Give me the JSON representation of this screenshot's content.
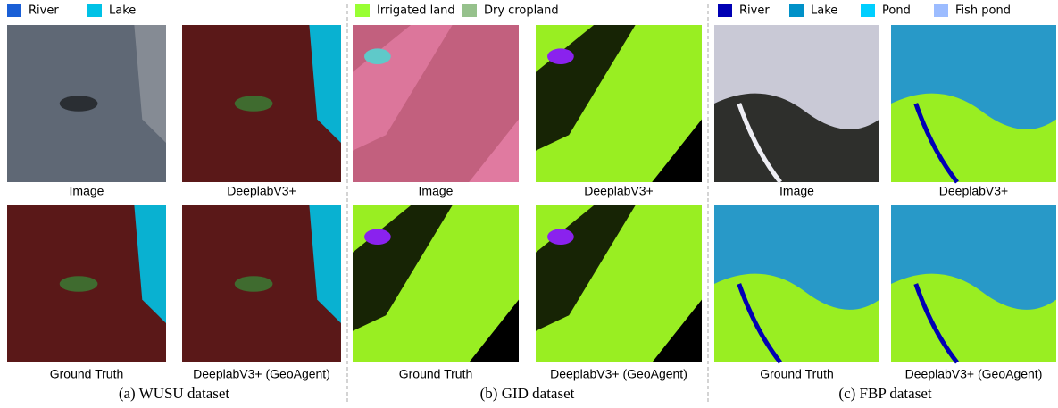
{
  "panels": [
    {
      "legend": [
        {
          "label": "River",
          "color": "#1a5fd6"
        },
        {
          "label": "Lake",
          "color": "#00c2e6"
        }
      ],
      "images": [
        {
          "caption": "Image"
        },
        {
          "caption": "DeeplabV3+"
        },
        {
          "caption": "Ground Truth"
        },
        {
          "caption": "DeeplabV3+ (GeoAgent)"
        }
      ],
      "caption": "(a) WUSU dataset"
    },
    {
      "legend": [
        {
          "label": "Irrigated land",
          "color": "#99ff33"
        },
        {
          "label": "Dry cropland",
          "color": "#96c18c"
        }
      ],
      "images": [
        {
          "caption": "Image"
        },
        {
          "caption": "DeeplabV3+"
        },
        {
          "caption": "Ground Truth"
        },
        {
          "caption": "DeeplabV3+ (GeoAgent)"
        }
      ],
      "caption": "(b) GID dataset"
    },
    {
      "legend": [
        {
          "label": "River",
          "color": "#0000b4"
        },
        {
          "label": "Lake",
          "color": "#0091c8"
        },
        {
          "label": "Pond",
          "color": "#00cfff"
        },
        {
          "label": "Fish pond",
          "color": "#9cbcff"
        }
      ],
      "images": [
        {
          "caption": "Image"
        },
        {
          "caption": "DeeplabV3+"
        },
        {
          "caption": "Ground Truth"
        },
        {
          "caption": "DeeplabV3+ (GeoAgent)"
        }
      ],
      "caption": "(c) FBP dataset"
    }
  ]
}
